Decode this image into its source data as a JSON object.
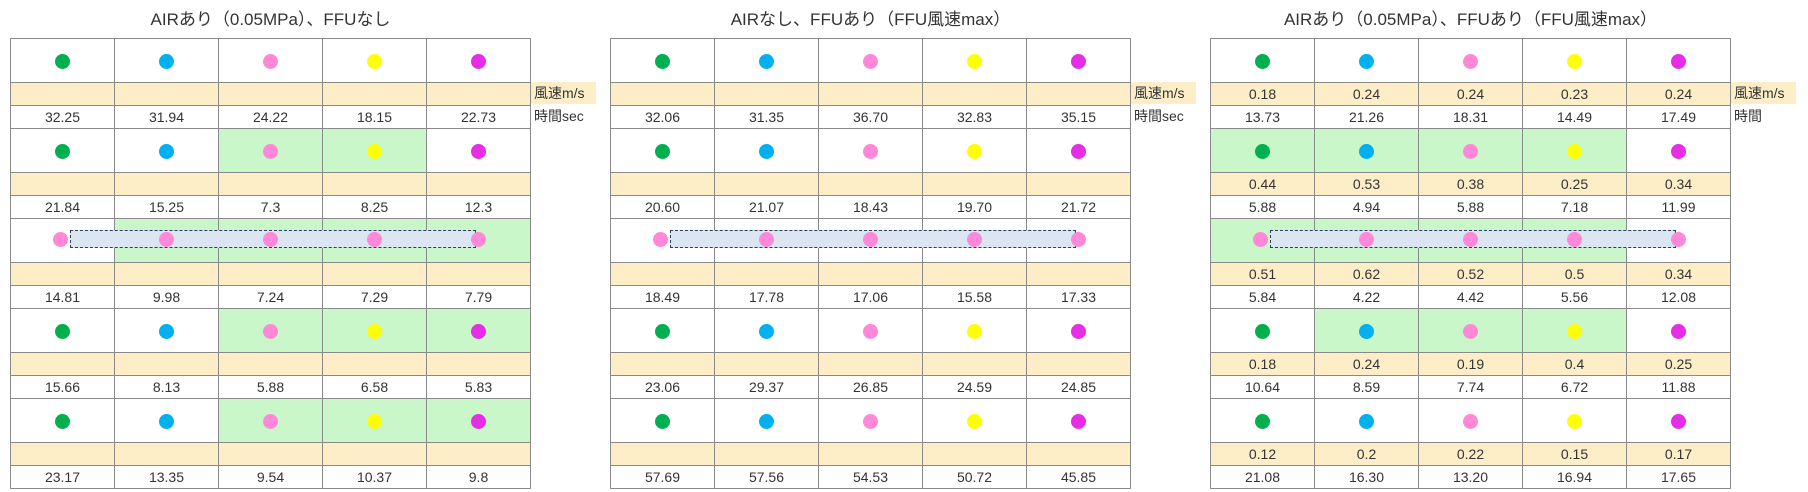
{
  "colors": {
    "dots": [
      "#00b050",
      "#00b0f0",
      "#ff89d8",
      "#ffff00",
      "#e62ee6"
    ],
    "speed_band": "#fdeec8",
    "highlight": "#c9f7c9",
    "bar_fill": "#dce6f2"
  },
  "panels": [
    {
      "title": "AIRあり（0.05MPa）、FFUなし",
      "speed_label": "風速m/s",
      "time_label": "時間sec",
      "blocks": [
        {
          "dots": [
            "green",
            "blue",
            "pink",
            "yellow",
            "magenta"
          ],
          "highlight": [],
          "bar": false,
          "speeds": [
            "",
            "",
            "",
            "",
            ""
          ],
          "times": [
            "32.25",
            "31.94",
            "24.22",
            "18.15",
            "22.73"
          ]
        },
        {
          "dots": [
            "green",
            "blue",
            "pink",
            "yellow",
            "magenta"
          ],
          "highlight": [
            2,
            3
          ],
          "bar": false,
          "speeds": [
            "",
            "",
            "",
            "",
            ""
          ],
          "times": [
            "21.84",
            "15.25",
            "7.3",
            "8.25",
            "12.3"
          ]
        },
        {
          "dots": [
            "pink",
            "pink",
            "pink",
            "pink",
            "pink"
          ],
          "highlight": [
            1,
            2,
            3,
            4
          ],
          "bar": true,
          "speeds": [
            "",
            "",
            "",
            "",
            ""
          ],
          "times": [
            "14.81",
            "9.98",
            "7.24",
            "7.29",
            "7.79"
          ]
        },
        {
          "dots": [
            "green",
            "blue",
            "pink",
            "yellow",
            "magenta"
          ],
          "highlight": [
            2,
            3,
            4
          ],
          "bar": false,
          "speeds": [
            "",
            "",
            "",
            "",
            ""
          ],
          "times": [
            "15.66",
            "8.13",
            "5.88",
            "6.58",
            "5.83"
          ]
        },
        {
          "dots": [
            "green",
            "blue",
            "pink",
            "yellow",
            "magenta"
          ],
          "highlight": [
            2,
            3,
            4
          ],
          "bar": false,
          "speeds": [
            "",
            "",
            "",
            "",
            ""
          ],
          "times": [
            "23.17",
            "13.35",
            "9.54",
            "10.37",
            "9.8"
          ]
        }
      ]
    },
    {
      "title": "AIRなし、FFUあり（FFU風速max）",
      "speed_label": "風速m/s",
      "time_label": "時間sec",
      "blocks": [
        {
          "dots": [
            "green",
            "blue",
            "pink",
            "yellow",
            "magenta"
          ],
          "highlight": [],
          "bar": false,
          "speeds": [
            "",
            "",
            "",
            "",
            ""
          ],
          "times": [
            "32.06",
            "31.35",
            "36.70",
            "32.83",
            "35.15"
          ]
        },
        {
          "dots": [
            "green",
            "blue",
            "pink",
            "yellow",
            "magenta"
          ],
          "highlight": [],
          "bar": false,
          "speeds": [
            "",
            "",
            "",
            "",
            ""
          ],
          "times": [
            "20.60",
            "21.07",
            "18.43",
            "19.70",
            "21.72"
          ]
        },
        {
          "dots": [
            "pink",
            "pink",
            "pink",
            "pink",
            "pink"
          ],
          "highlight": [],
          "bar": true,
          "speeds": [
            "",
            "",
            "",
            "",
            ""
          ],
          "times": [
            "18.49",
            "17.78",
            "17.06",
            "15.58",
            "17.33"
          ]
        },
        {
          "dots": [
            "green",
            "blue",
            "pink",
            "yellow",
            "magenta"
          ],
          "highlight": [],
          "bar": false,
          "speeds": [
            "",
            "",
            "",
            "",
            ""
          ],
          "times": [
            "23.06",
            "29.37",
            "26.85",
            "24.59",
            "24.85"
          ]
        },
        {
          "dots": [
            "green",
            "blue",
            "pink",
            "yellow",
            "magenta"
          ],
          "highlight": [],
          "bar": false,
          "speeds": [
            "",
            "",
            "",
            "",
            ""
          ],
          "times": [
            "57.69",
            "57.56",
            "54.53",
            "50.72",
            "45.85"
          ]
        }
      ]
    },
    {
      "title": "AIRあり（0.05MPa）、FFUあり（FFU風速max）",
      "speed_label": "風速m/s",
      "time_label": "時間",
      "blocks": [
        {
          "dots": [
            "green",
            "blue",
            "pink",
            "yellow",
            "magenta"
          ],
          "highlight": [],
          "bar": false,
          "speeds": [
            "0.18",
            "0.24",
            "0.24",
            "0.23",
            "0.24"
          ],
          "times": [
            "13.73",
            "21.26",
            "18.31",
            "14.49",
            "17.49"
          ]
        },
        {
          "dots": [
            "green",
            "blue",
            "pink",
            "yellow",
            "magenta"
          ],
          "highlight": [
            0,
            1,
            2,
            3
          ],
          "bar": false,
          "speeds": [
            "0.44",
            "0.53",
            "0.38",
            "0.25",
            "0.34"
          ],
          "times": [
            "5.88",
            "4.94",
            "5.88",
            "7.18",
            "11.99"
          ]
        },
        {
          "dots": [
            "pink",
            "pink",
            "pink",
            "pink",
            "pink"
          ],
          "highlight": [
            0,
            1,
            2,
            3
          ],
          "bar": true,
          "speeds": [
            "0.51",
            "0.62",
            "0.52",
            "0.5",
            "0.34"
          ],
          "times": [
            "5.84",
            "4.22",
            "4.42",
            "5.56",
            "12.08"
          ]
        },
        {
          "dots": [
            "green",
            "blue",
            "pink",
            "yellow",
            "magenta"
          ],
          "highlight": [
            1,
            2,
            3
          ],
          "bar": false,
          "speeds": [
            "0.18",
            "0.24",
            "0.19",
            "0.4",
            "0.25"
          ],
          "times": [
            "10.64",
            "8.59",
            "7.74",
            "6.72",
            "11.88"
          ]
        },
        {
          "dots": [
            "green",
            "blue",
            "pink",
            "yellow",
            "magenta"
          ],
          "highlight": [],
          "bar": false,
          "speeds": [
            "0.12",
            "0.2",
            "0.22",
            "0.15",
            "0.17"
          ],
          "times": [
            "21.08",
            "16.30",
            "13.20",
            "16.94",
            "17.65"
          ]
        }
      ]
    }
  ]
}
